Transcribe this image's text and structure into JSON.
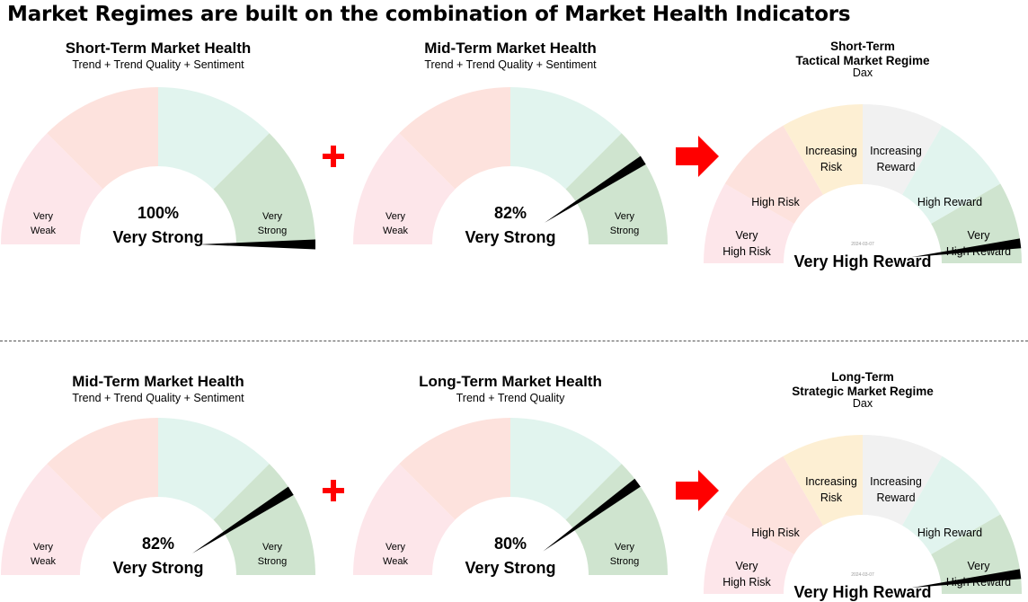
{
  "page_title": "Market Regimes are built on the combination of Market Health Indicators",
  "colors": {
    "very_weak": "#fde6ea",
    "weak": "#fde2dd",
    "strong": "#e1f4ee",
    "very_strong": "#cfe4cf",
    "needle": "#000000",
    "operator_red": "#ff0000",
    "regime_very_high_risk": "#fde6ea",
    "regime_high_risk": "#fde2dd",
    "regime_increasing_risk": "#fdefd3",
    "regime_increasing_reward": "#f1f1f1",
    "regime_high_reward": "#e1f4ee",
    "regime_very_high_reward": "#cfe4cf"
  },
  "operators": {
    "plus": "+",
    "arrow": "arrow-right-icon"
  },
  "rows": [
    {
      "gauges": [
        {
          "title": "Short-Term Market Health",
          "subtitle": "Trend + Trend Quality + Sentiment",
          "value": 100,
          "value_text": "100%",
          "status": "Very Strong",
          "left_label": [
            "Very",
            "Weak"
          ],
          "right_label": [
            "Very",
            "Strong"
          ]
        },
        {
          "title": "Mid-Term Market Health",
          "subtitle": "Trend + Trend Quality + Sentiment",
          "value": 82,
          "value_text": "82%",
          "status": "Very Strong",
          "left_label": [
            "Very",
            "Weak"
          ],
          "right_label": [
            "Very",
            "Strong"
          ]
        }
      ],
      "regime": {
        "title_line1": "Short-Term",
        "title_line2": "Tactical Market Regime",
        "index": "Dax",
        "value": 96,
        "status": "Very High Reward",
        "date_stamp": "2024-03-07",
        "labels": {
          "very_high_risk": [
            "Very",
            "High Risk"
          ],
          "high_risk": [
            "High Risk"
          ],
          "increasing_risk": [
            "Increasing",
            "Risk"
          ],
          "increasing_reward": [
            "Increasing",
            "Reward"
          ],
          "high_reward": [
            "High Reward"
          ],
          "very_high_reward": [
            "Very",
            "High Reward"
          ]
        }
      }
    },
    {
      "gauges": [
        {
          "title": "Mid-Term Market Health",
          "subtitle": "Trend + Trend Quality + Sentiment",
          "value": 82,
          "value_text": "82%",
          "status": "Very Strong",
          "left_label": [
            "Very",
            "Weak"
          ],
          "right_label": [
            "Very",
            "Strong"
          ]
        },
        {
          "title": "Long-Term Market Health",
          "subtitle": "Trend + Trend Quality",
          "value": 80,
          "value_text": "80%",
          "status": "Very Strong",
          "left_label": [
            "Very",
            "Weak"
          ],
          "right_label": [
            "Very",
            "Strong"
          ]
        }
      ],
      "regime": {
        "title_line1": "Long-Term",
        "title_line2": "Strategic Market Regime",
        "index": "Dax",
        "value": 96,
        "status": "Very High Reward",
        "date_stamp": "2024-03-07",
        "labels": {
          "very_high_risk": [
            "Very",
            "High Risk"
          ],
          "high_risk": [
            "High Risk"
          ],
          "increasing_risk": [
            "Increasing",
            "Risk"
          ],
          "increasing_reward": [
            "Increasing",
            "Reward"
          ],
          "high_reward": [
            "High Reward"
          ],
          "very_high_reward": [
            "Very",
            "High Reward"
          ]
        }
      }
    }
  ]
}
